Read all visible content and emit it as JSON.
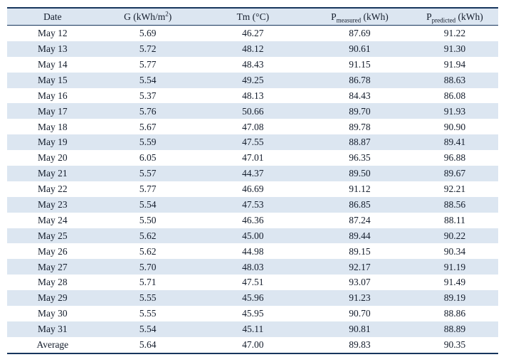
{
  "colors": {
    "rule_navy": "#17365d",
    "band_blue": "#dce6f1",
    "background": "#ffffff",
    "text": "#131c2b"
  },
  "chart_data": {
    "type": "table",
    "title": "",
    "columns": [
      {
        "label": "Date"
      },
      {
        "base": "G (kWh/m",
        "sup": "2",
        "suffix": ")"
      },
      {
        "label": "Tm (°C)"
      },
      {
        "base": "P",
        "sub": "measured",
        "suffix": " (kWh)"
      },
      {
        "base": "P",
        "sub": "predicted",
        "suffix": " (kWh)"
      }
    ],
    "rows": [
      [
        "May 12",
        "5.69",
        "46.27",
        "87.69",
        "91.22"
      ],
      [
        "May 13",
        "5.72",
        "48.12",
        "90.61",
        "91.30"
      ],
      [
        "May 14",
        "5.77",
        "48.43",
        "91.15",
        "91.94"
      ],
      [
        "May 15",
        "5.54",
        "49.25",
        "86.78",
        "88.63"
      ],
      [
        "May 16",
        "5.37",
        "48.13",
        "84.43",
        "86.08"
      ],
      [
        "May 17",
        "5.76",
        "50.66",
        "89.70",
        "91.93"
      ],
      [
        "May 18",
        "5.67",
        "47.08",
        "89.78",
        "90.90"
      ],
      [
        "May 19",
        "5.59",
        "47.55",
        "88.87",
        "89.41"
      ],
      [
        "May 20",
        "6.05",
        "47.01",
        "96.35",
        "96.88"
      ],
      [
        "May 21",
        "5.57",
        "44.37",
        "89.50",
        "89.67"
      ],
      [
        "May 22",
        "5.77",
        "46.69",
        "91.12",
        "92.21"
      ],
      [
        "May 23",
        "5.54",
        "47.53",
        "86.85",
        "88.56"
      ],
      [
        "May 24",
        "5.50",
        "46.36",
        "87.24",
        "88.11"
      ],
      [
        "May 25",
        "5.62",
        "45.00",
        "89.44",
        "90.22"
      ],
      [
        "May 26",
        "5.62",
        "44.98",
        "89.15",
        "90.34"
      ],
      [
        "May 27",
        "5.70",
        "48.03",
        "92.17",
        "91.19"
      ],
      [
        "May 28",
        "5.71",
        "47.51",
        "93.07",
        "91.49"
      ],
      [
        "May 29",
        "5.55",
        "45.96",
        "91.23",
        "89.19"
      ],
      [
        "May 30",
        "5.55",
        "45.95",
        "90.70",
        "88.86"
      ],
      [
        "May 31",
        "5.54",
        "45.11",
        "90.81",
        "88.89"
      ],
      [
        "Average",
        "5.64",
        "47.00",
        "89.83",
        "90.35"
      ]
    ]
  }
}
